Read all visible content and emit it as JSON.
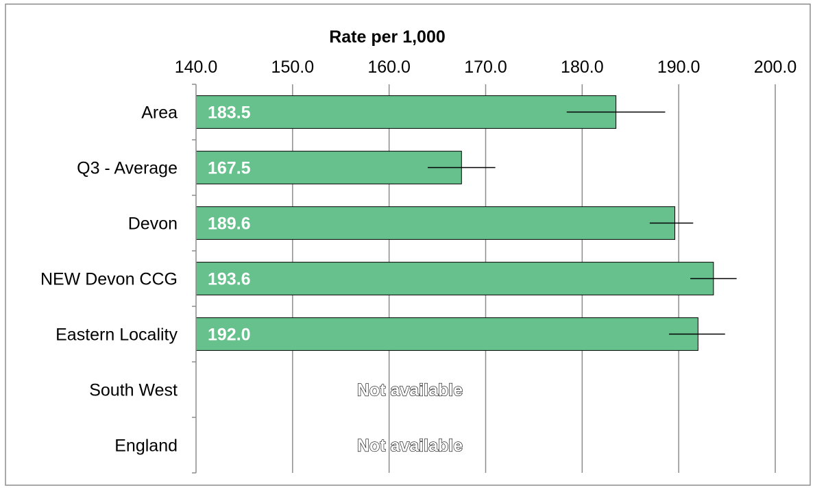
{
  "chart_data": {
    "type": "bar",
    "orientation": "horizontal",
    "title": "Rate per 1,000",
    "xlim": [
      140.0,
      200.0
    ],
    "x_ticks": [
      "140.0",
      "150.0",
      "160.0",
      "170.0",
      "180.0",
      "190.0",
      "200.0"
    ],
    "x_tick_values": [
      140,
      150,
      160,
      170,
      180,
      190,
      200
    ],
    "grid": "vertical",
    "bar_color": "#66c18c",
    "bar_edge_color": "#000000",
    "categories": [
      "Area",
      "Q3 - Average",
      "Devon",
      "NEW Devon CCG",
      "Eastern Locality",
      "South West",
      "England"
    ],
    "values": [
      183.5,
      167.5,
      189.6,
      193.6,
      192.0,
      null,
      null
    ],
    "value_labels": [
      "183.5",
      "167.5",
      "189.6",
      "193.6",
      "192.0",
      "Not available",
      "Not available"
    ],
    "error_low": [
      178.4,
      164.0,
      187.0,
      191.2,
      189.0,
      null,
      null
    ],
    "error_high": [
      188.6,
      171.0,
      191.5,
      196.0,
      194.8,
      null,
      null
    ]
  }
}
